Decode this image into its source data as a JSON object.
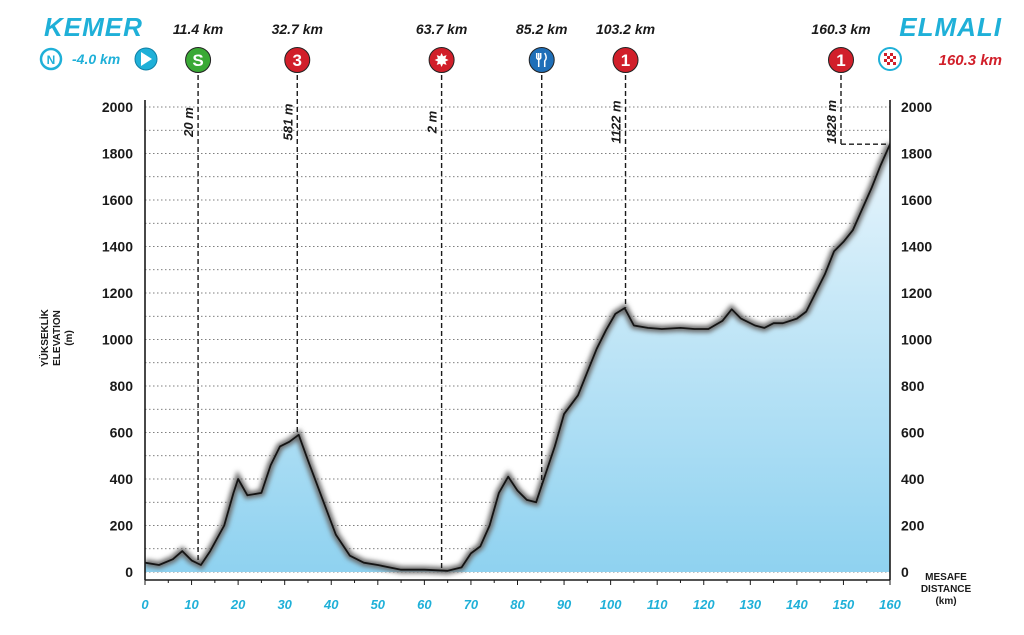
{
  "header": {
    "start_name": "KEMER",
    "finish_name": "ELMALI",
    "neutral_label": "-4.0 km",
    "finish_km_label": "160.3 km"
  },
  "colors": {
    "accent_cyan": "#1fb0d8",
    "climb_red": "#d11f2a",
    "sprint_green": "#3aa935",
    "feed_blue": "#1f6fb8",
    "fill_top": "#e8f5fc",
    "fill_bottom": "#8fd2f0"
  },
  "markers": [
    {
      "km": 11.4,
      "label": "11.4 km",
      "icon": "sprint-icon",
      "badge": "S",
      "altitude_label": "20 m"
    },
    {
      "km": 32.7,
      "label": "32.7 km",
      "icon": "climb-category-3-icon",
      "badge": "3",
      "altitude_label": "581 m"
    },
    {
      "km": 63.7,
      "label": "63.7 km",
      "icon": "bonus-sprint-icon",
      "badge": "",
      "altitude_label": "2 m"
    },
    {
      "km": 85.2,
      "label": "85.2 km",
      "icon": "feed-zone-icon",
      "badge": "",
      "altitude_label": ""
    },
    {
      "km": 103.2,
      "label": "103.2 km",
      "icon": "climb-category-1-icon",
      "badge": "1",
      "altitude_label": "1122 m"
    },
    {
      "km": 160.3,
      "label": "160.3 km",
      "icon": "climb-category-1-icon",
      "badge": "1",
      "altitude_label": "1828 m"
    }
  ],
  "start_icons": {
    "neutral_badge": "N",
    "start_icon": "play-icon",
    "finish_icon": "checkered-flag-icon"
  },
  "chart_data": {
    "type": "area",
    "xlabel": "MESAFE\nDISTANCE\n(km)",
    "ylabel": "YÜKSEKLİK\nELEVATION\n(m)",
    "xlim": [
      0,
      160
    ],
    "ylim": [
      0,
      2000
    ],
    "x_ticks": [
      0,
      10,
      20,
      30,
      40,
      50,
      60,
      70,
      80,
      90,
      100,
      110,
      120,
      130,
      140,
      150,
      160
    ],
    "y_ticks": [
      0,
      200,
      400,
      600,
      800,
      1000,
      1200,
      1400,
      1600,
      1800,
      2000
    ],
    "grid": "horizontal dotted",
    "x": [
      0,
      3,
      6,
      8,
      10,
      12,
      14,
      17,
      19,
      20,
      22,
      25,
      27,
      29,
      31,
      33,
      35,
      38,
      41,
      44,
      47,
      50,
      55,
      60,
      65,
      68,
      70,
      72,
      74,
      76,
      78,
      80,
      82,
      84,
      86,
      88,
      90,
      93,
      95,
      97,
      99,
      101,
      103,
      105,
      108,
      111,
      115,
      118,
      121,
      124,
      126,
      128,
      131,
      133,
      135,
      137,
      140,
      142,
      144,
      146,
      148,
      150,
      152,
      154,
      156,
      158,
      160
    ],
    "y": [
      40,
      30,
      55,
      90,
      50,
      30,
      90,
      200,
      340,
      400,
      330,
      340,
      460,
      540,
      560,
      590,
      480,
      320,
      160,
      70,
      40,
      30,
      10,
      10,
      5,
      20,
      80,
      110,
      200,
      340,
      410,
      350,
      310,
      300,
      420,
      540,
      680,
      760,
      860,
      960,
      1040,
      1110,
      1135,
      1060,
      1050,
      1045,
      1050,
      1045,
      1045,
      1080,
      1130,
      1090,
      1060,
      1050,
      1070,
      1070,
      1090,
      1120,
      1200,
      1280,
      1380,
      1420,
      1470,
      1560,
      1650,
      1750,
      1840
    ]
  }
}
